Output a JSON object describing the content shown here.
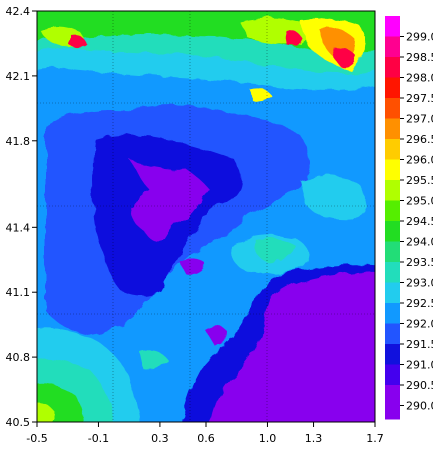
{
  "map": {
    "x_ticks": [
      "-0.5",
      "-0.1",
      "0.3",
      "0.6",
      "1.0",
      "1.3",
      "1.7"
    ],
    "x_tick_values": [
      -0.5,
      -0.1,
      0.3,
      0.6,
      1.0,
      1.3,
      1.7
    ],
    "y_ticks": [
      "42.4",
      "42.1",
      "41.8",
      "41.4",
      "41.1",
      "40.8",
      "40.5"
    ],
    "y_tick_values": [
      42.4,
      42.1,
      41.8,
      41.4,
      41.1,
      40.8,
      40.5
    ],
    "xlim": [
      -0.5,
      1.7
    ],
    "ylim": [
      40.5,
      42.4
    ],
    "grid": "dotted",
    "colorbar_position": "right",
    "colorbar_labels": [
      "299.0",
      "298.5",
      "298.0",
      "297.5",
      "297.0",
      "296.5",
      "296.0",
      "295.5",
      "295.0",
      "294.5",
      "294.0",
      "293.5",
      "293.0",
      "292.5",
      "292.0",
      "291.5",
      "291.0",
      "290.5",
      "290.0"
    ],
    "colorbar_colors": [
      "#ff00ff",
      "#ff0090",
      "#ff0044",
      "#ff1500",
      "#ff5000",
      "#ff9000",
      "#ffcc00",
      "#ffff00",
      "#b0ff00",
      "#55ee00",
      "#22dd22",
      "#22dd77",
      "#22ddbb",
      "#22ccee",
      "#1199ff",
      "#2255ff",
      "#1111dd",
      "#4400ee",
      "#8800ee"
    ],
    "colorbar_bottom_swatch": "#8800ee"
  }
}
